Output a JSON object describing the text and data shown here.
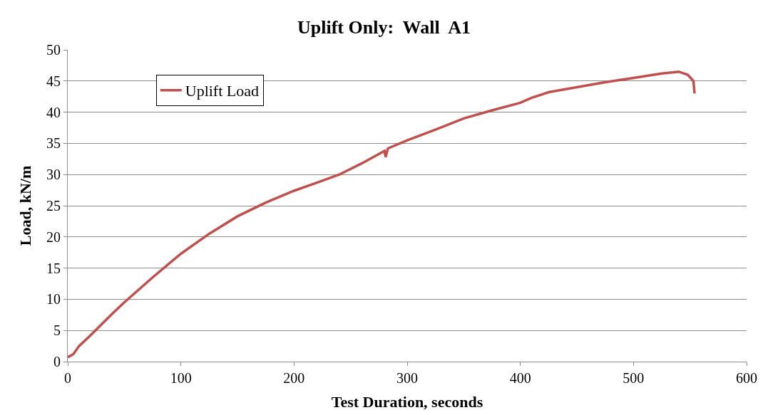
{
  "chart_data": {
    "type": "line",
    "title": "Uplift Only:  Wall  A1",
    "xlabel": "Test Duration, seconds",
    "ylabel": "Load, kN/m",
    "xlim": [
      0,
      600
    ],
    "xticks": [
      0,
      100,
      200,
      300,
      400,
      500,
      600
    ],
    "ylim": [
      0,
      50
    ],
    "yticks": [
      0,
      5,
      10,
      15,
      20,
      25,
      30,
      35,
      40,
      45,
      50
    ],
    "grid": "y",
    "legend": "top left",
    "marker": "none",
    "line_style": "solid",
    "series": [
      {
        "name": "Uplift Load",
        "color": "#c0504d",
        "x": [
          0,
          5,
          10,
          20,
          30,
          40,
          50,
          75,
          100,
          125,
          150,
          175,
          200,
          225,
          240,
          260,
          280,
          281,
          283,
          300,
          325,
          350,
          375,
          400,
          410,
          425,
          450,
          475,
          500,
          525,
          540,
          548,
          553,
          554
        ],
        "values": [
          0.7,
          1.2,
          2.5,
          4.2,
          6,
          7.8,
          9.5,
          13.5,
          17.3,
          20.5,
          23.3,
          25.5,
          27.4,
          29,
          30,
          31.8,
          33.8,
          32.8,
          34.2,
          35.5,
          37.2,
          39,
          40.3,
          41.5,
          42.3,
          43.2,
          44,
          44.8,
          45.5,
          46.2,
          46.5,
          46,
          45,
          43
        ]
      }
    ]
  }
}
